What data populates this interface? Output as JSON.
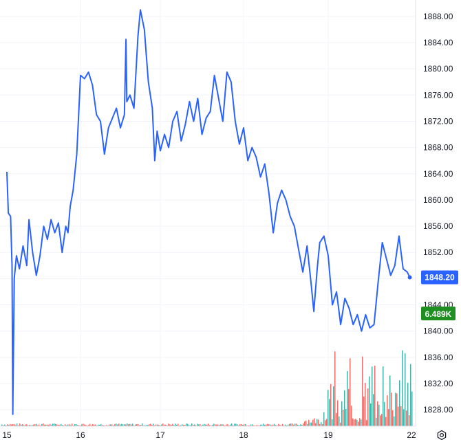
{
  "chart_data": {
    "type": "line",
    "x_ticks": [
      "15",
      "16",
      "17",
      "18",
      "19",
      "22"
    ],
    "y_ticks": [
      "1828.00",
      "1832.00",
      "1836.00",
      "1840.00",
      "1844.00",
      "1848.00",
      "1852.00",
      "1856.00",
      "1860.00",
      "1864.00",
      "1868.00",
      "1872.00",
      "1876.00",
      "1880.00",
      "1884.00",
      "1888.00"
    ],
    "ylim": [
      1825.5,
      1890.5
    ],
    "grid": true,
    "series": [
      {
        "values": [
          [
            15.0,
            1864.3
          ],
          [
            15.02,
            1858.0
          ],
          [
            15.05,
            1857.5
          ],
          [
            15.07,
            1850.0
          ],
          [
            15.08,
            1827.3
          ],
          [
            15.1,
            1848.0
          ],
          [
            15.13,
            1851.5
          ],
          [
            15.17,
            1849.5
          ],
          [
            15.22,
            1853.0
          ],
          [
            15.27,
            1850.0
          ],
          [
            15.3,
            1857.0
          ],
          [
            15.35,
            1852.0
          ],
          [
            15.4,
            1848.5
          ],
          [
            15.45,
            1851.5
          ],
          [
            15.5,
            1856.0
          ],
          [
            15.55,
            1854.0
          ],
          [
            15.6,
            1857.0
          ],
          [
            15.65,
            1855.0
          ],
          [
            15.7,
            1856.5
          ],
          [
            15.75,
            1852.0
          ],
          [
            15.8,
            1856.0
          ],
          [
            15.83,
            1855.0
          ],
          [
            15.86,
            1859.0
          ],
          [
            15.9,
            1861.5
          ],
          [
            15.95,
            1867.0
          ],
          [
            16.0,
            1879.0
          ],
          [
            16.05,
            1878.5
          ],
          [
            16.1,
            1879.5
          ],
          [
            16.15,
            1877.5
          ],
          [
            16.2,
            1873.0
          ],
          [
            16.25,
            1872.0
          ],
          [
            16.3,
            1867.0
          ],
          [
            16.35,
            1871.0
          ],
          [
            16.4,
            1872.5
          ],
          [
            16.45,
            1874.0
          ],
          [
            16.5,
            1871.0
          ],
          [
            16.55,
            1873.0
          ],
          [
            16.57,
            1884.5
          ],
          [
            16.58,
            1875.0
          ],
          [
            16.62,
            1876.0
          ],
          [
            16.67,
            1874.0
          ],
          [
            16.72,
            1885.0
          ],
          [
            16.75,
            1889.0
          ],
          [
            16.8,
            1886.0
          ],
          [
            16.85,
            1878.0
          ],
          [
            16.9,
            1874.0
          ],
          [
            16.93,
            1866.0
          ],
          [
            16.96,
            1870.5
          ],
          [
            17.0,
            1867.5
          ],
          [
            17.05,
            1870.0
          ],
          [
            17.1,
            1868.0
          ],
          [
            17.15,
            1872.0
          ],
          [
            17.2,
            1873.5
          ],
          [
            17.25,
            1869.0
          ],
          [
            17.3,
            1871.5
          ],
          [
            17.35,
            1875.0
          ],
          [
            17.4,
            1872.0
          ],
          [
            17.45,
            1875.5
          ],
          [
            17.5,
            1870.0
          ],
          [
            17.55,
            1872.5
          ],
          [
            17.6,
            1873.5
          ],
          [
            17.65,
            1879.0
          ],
          [
            17.7,
            1875.5
          ],
          [
            17.75,
            1872.0
          ],
          [
            17.8,
            1879.5
          ],
          [
            17.85,
            1878.0
          ],
          [
            17.9,
            1872.0
          ],
          [
            17.95,
            1868.5
          ],
          [
            18.0,
            1871.0
          ],
          [
            18.05,
            1866.0
          ],
          [
            18.1,
            1868.0
          ],
          [
            18.15,
            1866.5
          ],
          [
            18.2,
            1863.5
          ],
          [
            18.25,
            1865.5
          ],
          [
            18.3,
            1861.0
          ],
          [
            18.35,
            1855.0
          ],
          [
            18.4,
            1859.5
          ],
          [
            18.45,
            1861.5
          ],
          [
            18.5,
            1860.0
          ],
          [
            18.55,
            1857.5
          ],
          [
            18.6,
            1856.0
          ],
          [
            18.65,
            1852.5
          ],
          [
            18.7,
            1849.0
          ],
          [
            18.75,
            1853.0
          ],
          [
            18.8,
            1847.0
          ],
          [
            18.83,
            1843.0
          ],
          [
            18.87,
            1849.5
          ],
          [
            18.9,
            1853.5
          ],
          [
            18.95,
            1854.5
          ],
          [
            19.0,
            1851.5
          ],
          [
            19.05,
            1844.0
          ],
          [
            19.1,
            1846.0
          ],
          [
            19.15,
            1841.0
          ],
          [
            19.2,
            1845.0
          ],
          [
            19.25,
            1843.5
          ],
          [
            19.3,
            1841.0
          ],
          [
            19.35,
            1842.5
          ],
          [
            19.4,
            1840.0
          ],
          [
            19.45,
            1842.5
          ],
          [
            19.5,
            1840.5
          ],
          [
            19.55,
            1841.0
          ],
          [
            19.6,
            1847.5
          ],
          [
            19.65,
            1853.5
          ],
          [
            19.7,
            1851.0
          ],
          [
            19.75,
            1848.5
          ],
          [
            19.8,
            1850.0
          ],
          [
            19.85,
            1854.5
          ],
          [
            19.9,
            1849.5
          ],
          [
            19.95,
            1849.0
          ],
          [
            19.98,
            1848.2
          ]
        ]
      }
    ],
    "last_value_label": "1848.20",
    "volume_label": "6.489K",
    "colors": {
      "line": "#2962ff",
      "grid": "#f0f3fa",
      "axis_text": "#131722",
      "price_badge": "#2962ff",
      "volume_badge": "#1e8f20",
      "volume_up": "#26a69a",
      "volume_down": "#ef5350"
    }
  },
  "icons": {
    "settings": "settings-gear-icon"
  }
}
